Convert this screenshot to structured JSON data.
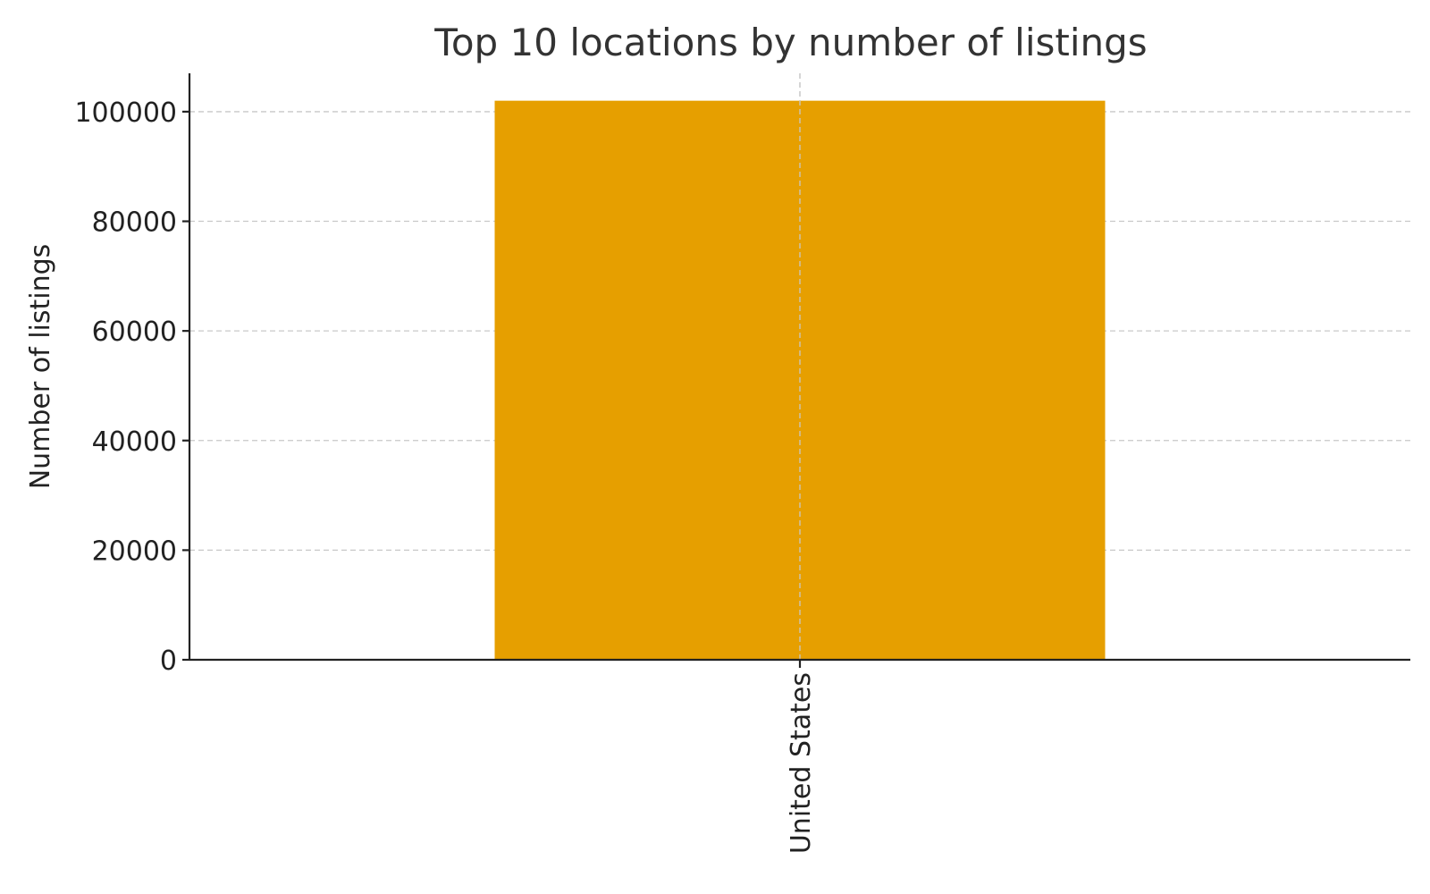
{
  "chart_data": {
    "type": "bar",
    "title": "Top 10 locations by number of listings",
    "xlabel": "",
    "ylabel": "Number of listings",
    "categories": [
      "United States"
    ],
    "values": [
      102000
    ],
    "ylim": [
      0,
      107000
    ],
    "yticks": [
      0,
      20000,
      40000,
      60000,
      80000,
      100000
    ],
    "ytick_labels": [
      "0",
      "20000",
      "40000",
      "60000",
      "80000",
      "100000"
    ],
    "xtick_rotation": "vertical",
    "grid": true,
    "legend": "none",
    "bar_color": "#E69F00"
  }
}
